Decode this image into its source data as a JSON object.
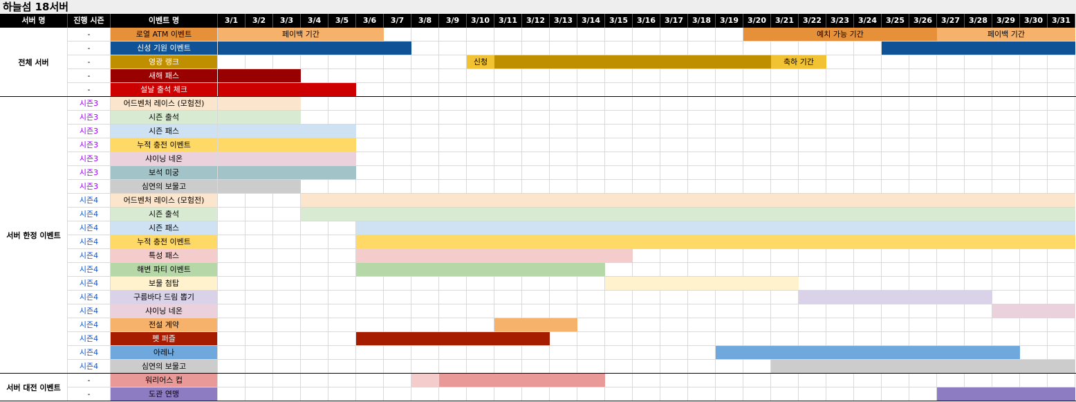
{
  "title": "하늘섬 18서버",
  "headers": {
    "server": "서버 명",
    "season": "진행 시즌",
    "event": "이벤트 명"
  },
  "days": [
    "3/1",
    "3/2",
    "3/3",
    "3/4",
    "3/5",
    "3/6",
    "3/7",
    "3/8",
    "3/9",
    "3/10",
    "3/11",
    "3/12",
    "3/13",
    "3/14",
    "3/15",
    "3/16",
    "3/17",
    "3/18",
    "3/19",
    "3/20",
    "3/21",
    "3/22",
    "3/23",
    "3/24",
    "3/25",
    "3/26",
    "3/27",
    "3/28",
    "3/29",
    "3/30",
    "3/31"
  ],
  "groups": [
    {
      "label": "전체 서버",
      "rows": 5
    },
    {
      "label": "서버 한정 이벤트",
      "rows": 20
    },
    {
      "label": "서버 대전 이벤트",
      "rows": 2
    }
  ],
  "rows": [
    {
      "season": "-",
      "event": "로열 ATM 이벤트",
      "color": "#e6913a",
      "text": "#000",
      "bars": [
        {
          "s": 1,
          "e": 6,
          "c": "#f6b26b",
          "label": "페이백 기간"
        },
        {
          "s": 20,
          "e": 26,
          "c": "#e6913a",
          "label": "예치 가능 기간"
        },
        {
          "s": 27,
          "e": 31,
          "c": "#f6b26b",
          "label": "페이백 기간"
        }
      ]
    },
    {
      "season": "-",
      "event": "신성 기원 이벤트",
      "color": "#0f5396",
      "text": "#fff",
      "bars": [
        {
          "s": 1,
          "e": 7,
          "c": "#0f5396"
        },
        {
          "s": 25,
          "e": 31,
          "c": "#0f5396"
        }
      ]
    },
    {
      "season": "-",
      "event": "영광 랭크",
      "color": "#bf8f00",
      "text": "#fff",
      "bars": [
        {
          "s": 10,
          "e": 10,
          "c": "#f1c232",
          "label": "신청"
        },
        {
          "s": 11,
          "e": 20,
          "c": "#bf8f00"
        },
        {
          "s": 21,
          "e": 22,
          "c": "#f1c232",
          "label": "축하 기간"
        }
      ]
    },
    {
      "season": "-",
      "event": "새해 패스",
      "color": "#990000",
      "text": "#fff",
      "bars": [
        {
          "s": 1,
          "e": 3,
          "c": "#990000"
        }
      ]
    },
    {
      "season": "-",
      "event": "설날 출석 체크",
      "color": "#cc0000",
      "text": "#fff",
      "bars": [
        {
          "s": 1,
          "e": 5,
          "c": "#cc0000"
        }
      ]
    },
    {
      "season": "시즌3",
      "event": "어드벤처 레이스 (모험전)",
      "color": "#fce5cd",
      "text": "#000",
      "bars": [
        {
          "s": 1,
          "e": 3,
          "c": "#fce5cd"
        }
      ]
    },
    {
      "season": "시즌3",
      "event": "시즌 출석",
      "color": "#d9ead3",
      "text": "#000",
      "bars": [
        {
          "s": 1,
          "e": 3,
          "c": "#d9ead3"
        }
      ]
    },
    {
      "season": "시즌3",
      "event": "시즌 패스",
      "color": "#cfe2f3",
      "text": "#000",
      "bars": [
        {
          "s": 1,
          "e": 5,
          "c": "#cfe2f3"
        }
      ]
    },
    {
      "season": "시즌3",
      "event": "누적 충전 이벤트",
      "color": "#ffd966",
      "text": "#000",
      "bars": [
        {
          "s": 1,
          "e": 5,
          "c": "#ffd966"
        }
      ]
    },
    {
      "season": "시즌3",
      "event": "샤이닝 네온",
      "color": "#ead1dc",
      "text": "#000",
      "bars": [
        {
          "s": 1,
          "e": 5,
          "c": "#ead1dc"
        }
      ]
    },
    {
      "season": "시즌3",
      "event": "보석 미궁",
      "color": "#a2c4c9",
      "text": "#000",
      "bars": [
        {
          "s": 1,
          "e": 5,
          "c": "#a2c4c9"
        }
      ]
    },
    {
      "season": "시즌3",
      "event": "심연의 보물고",
      "color": "#cccccc",
      "text": "#000",
      "bars": [
        {
          "s": 1,
          "e": 3,
          "c": "#cccccc"
        }
      ]
    },
    {
      "season": "시즌4",
      "event": "어드벤처 레이스 (모험전)",
      "color": "#fce5cd",
      "text": "#000",
      "bars": [
        {
          "s": 4,
          "e": 31,
          "c": "#fce5cd"
        }
      ]
    },
    {
      "season": "시즌4",
      "event": "시즌 출석",
      "color": "#d9ead3",
      "text": "#000",
      "bars": [
        {
          "s": 4,
          "e": 31,
          "c": "#d9ead3"
        }
      ]
    },
    {
      "season": "시즌4",
      "event": "시즌 패스",
      "color": "#cfe2f3",
      "text": "#000",
      "bars": [
        {
          "s": 6,
          "e": 31,
          "c": "#cfe2f3"
        }
      ]
    },
    {
      "season": "시즌4",
      "event": "누적 충전 이벤트",
      "color": "#ffd966",
      "text": "#000",
      "bars": [
        {
          "s": 6,
          "e": 31,
          "c": "#ffd966"
        }
      ]
    },
    {
      "season": "시즌4",
      "event": "특성 패스",
      "color": "#f4cccc",
      "text": "#000",
      "bars": [
        {
          "s": 6,
          "e": 15,
          "c": "#f4cccc"
        }
      ]
    },
    {
      "season": "시즌4",
      "event": "해변 파티 이벤트",
      "color": "#b6d7a8",
      "text": "#000",
      "bars": [
        {
          "s": 6,
          "e": 14,
          "c": "#b6d7a8"
        }
      ]
    },
    {
      "season": "시즌4",
      "event": "보물 첨탑",
      "color": "#fff2cc",
      "text": "#000",
      "bars": [
        {
          "s": 15,
          "e": 21,
          "c": "#fff2cc"
        }
      ]
    },
    {
      "season": "시즌4",
      "event": "구름바다 드림 뽑기",
      "color": "#d9d2e9",
      "text": "#000",
      "bars": [
        {
          "s": 22,
          "e": 28,
          "c": "#d9d2e9"
        }
      ]
    },
    {
      "season": "시즌4",
      "event": "샤이닝 네온",
      "color": "#ead1dc",
      "text": "#000",
      "bars": [
        {
          "s": 29,
          "e": 31,
          "c": "#ead1dc"
        }
      ]
    },
    {
      "season": "시즌4",
      "event": "전설 계약",
      "color": "#f6b26b",
      "text": "#000",
      "bars": [
        {
          "s": 11,
          "e": 13,
          "c": "#f6b26b"
        }
      ]
    },
    {
      "season": "시즌4",
      "event": "펫 퍼즐",
      "color": "#a61c00",
      "text": "#fff",
      "bars": [
        {
          "s": 6,
          "e": 12,
          "c": "#a61c00"
        }
      ]
    },
    {
      "season": "시즌4",
      "event": "아레나",
      "color": "#6fa8dc",
      "text": "#000",
      "bars": [
        {
          "s": 19,
          "e": 29,
          "c": "#6fa8dc"
        }
      ]
    },
    {
      "season": "시즌4",
      "event": "심연의 보물고",
      "color": "#cccccc",
      "text": "#000",
      "bars": [
        {
          "s": 21,
          "e": 31,
          "c": "#cccccc"
        }
      ]
    },
    {
      "season": "-",
      "event": "워리어스 컵",
      "color": "#ea9999",
      "text": "#000",
      "bars": [
        {
          "s": 8,
          "e": 8,
          "c": "#f4cccc"
        },
        {
          "s": 9,
          "e": 14,
          "c": "#ea9999"
        }
      ]
    },
    {
      "season": "-",
      "event": "도관 연맹",
      "color": "#8e7cc3",
      "text": "#000",
      "bars": [
        {
          "s": 27,
          "e": 31,
          "c": "#8e7cc3"
        }
      ]
    }
  ],
  "season_colors": {
    "시즌3": "#9900ff",
    "시즌4": "#1155cc",
    "-": "#000000"
  }
}
